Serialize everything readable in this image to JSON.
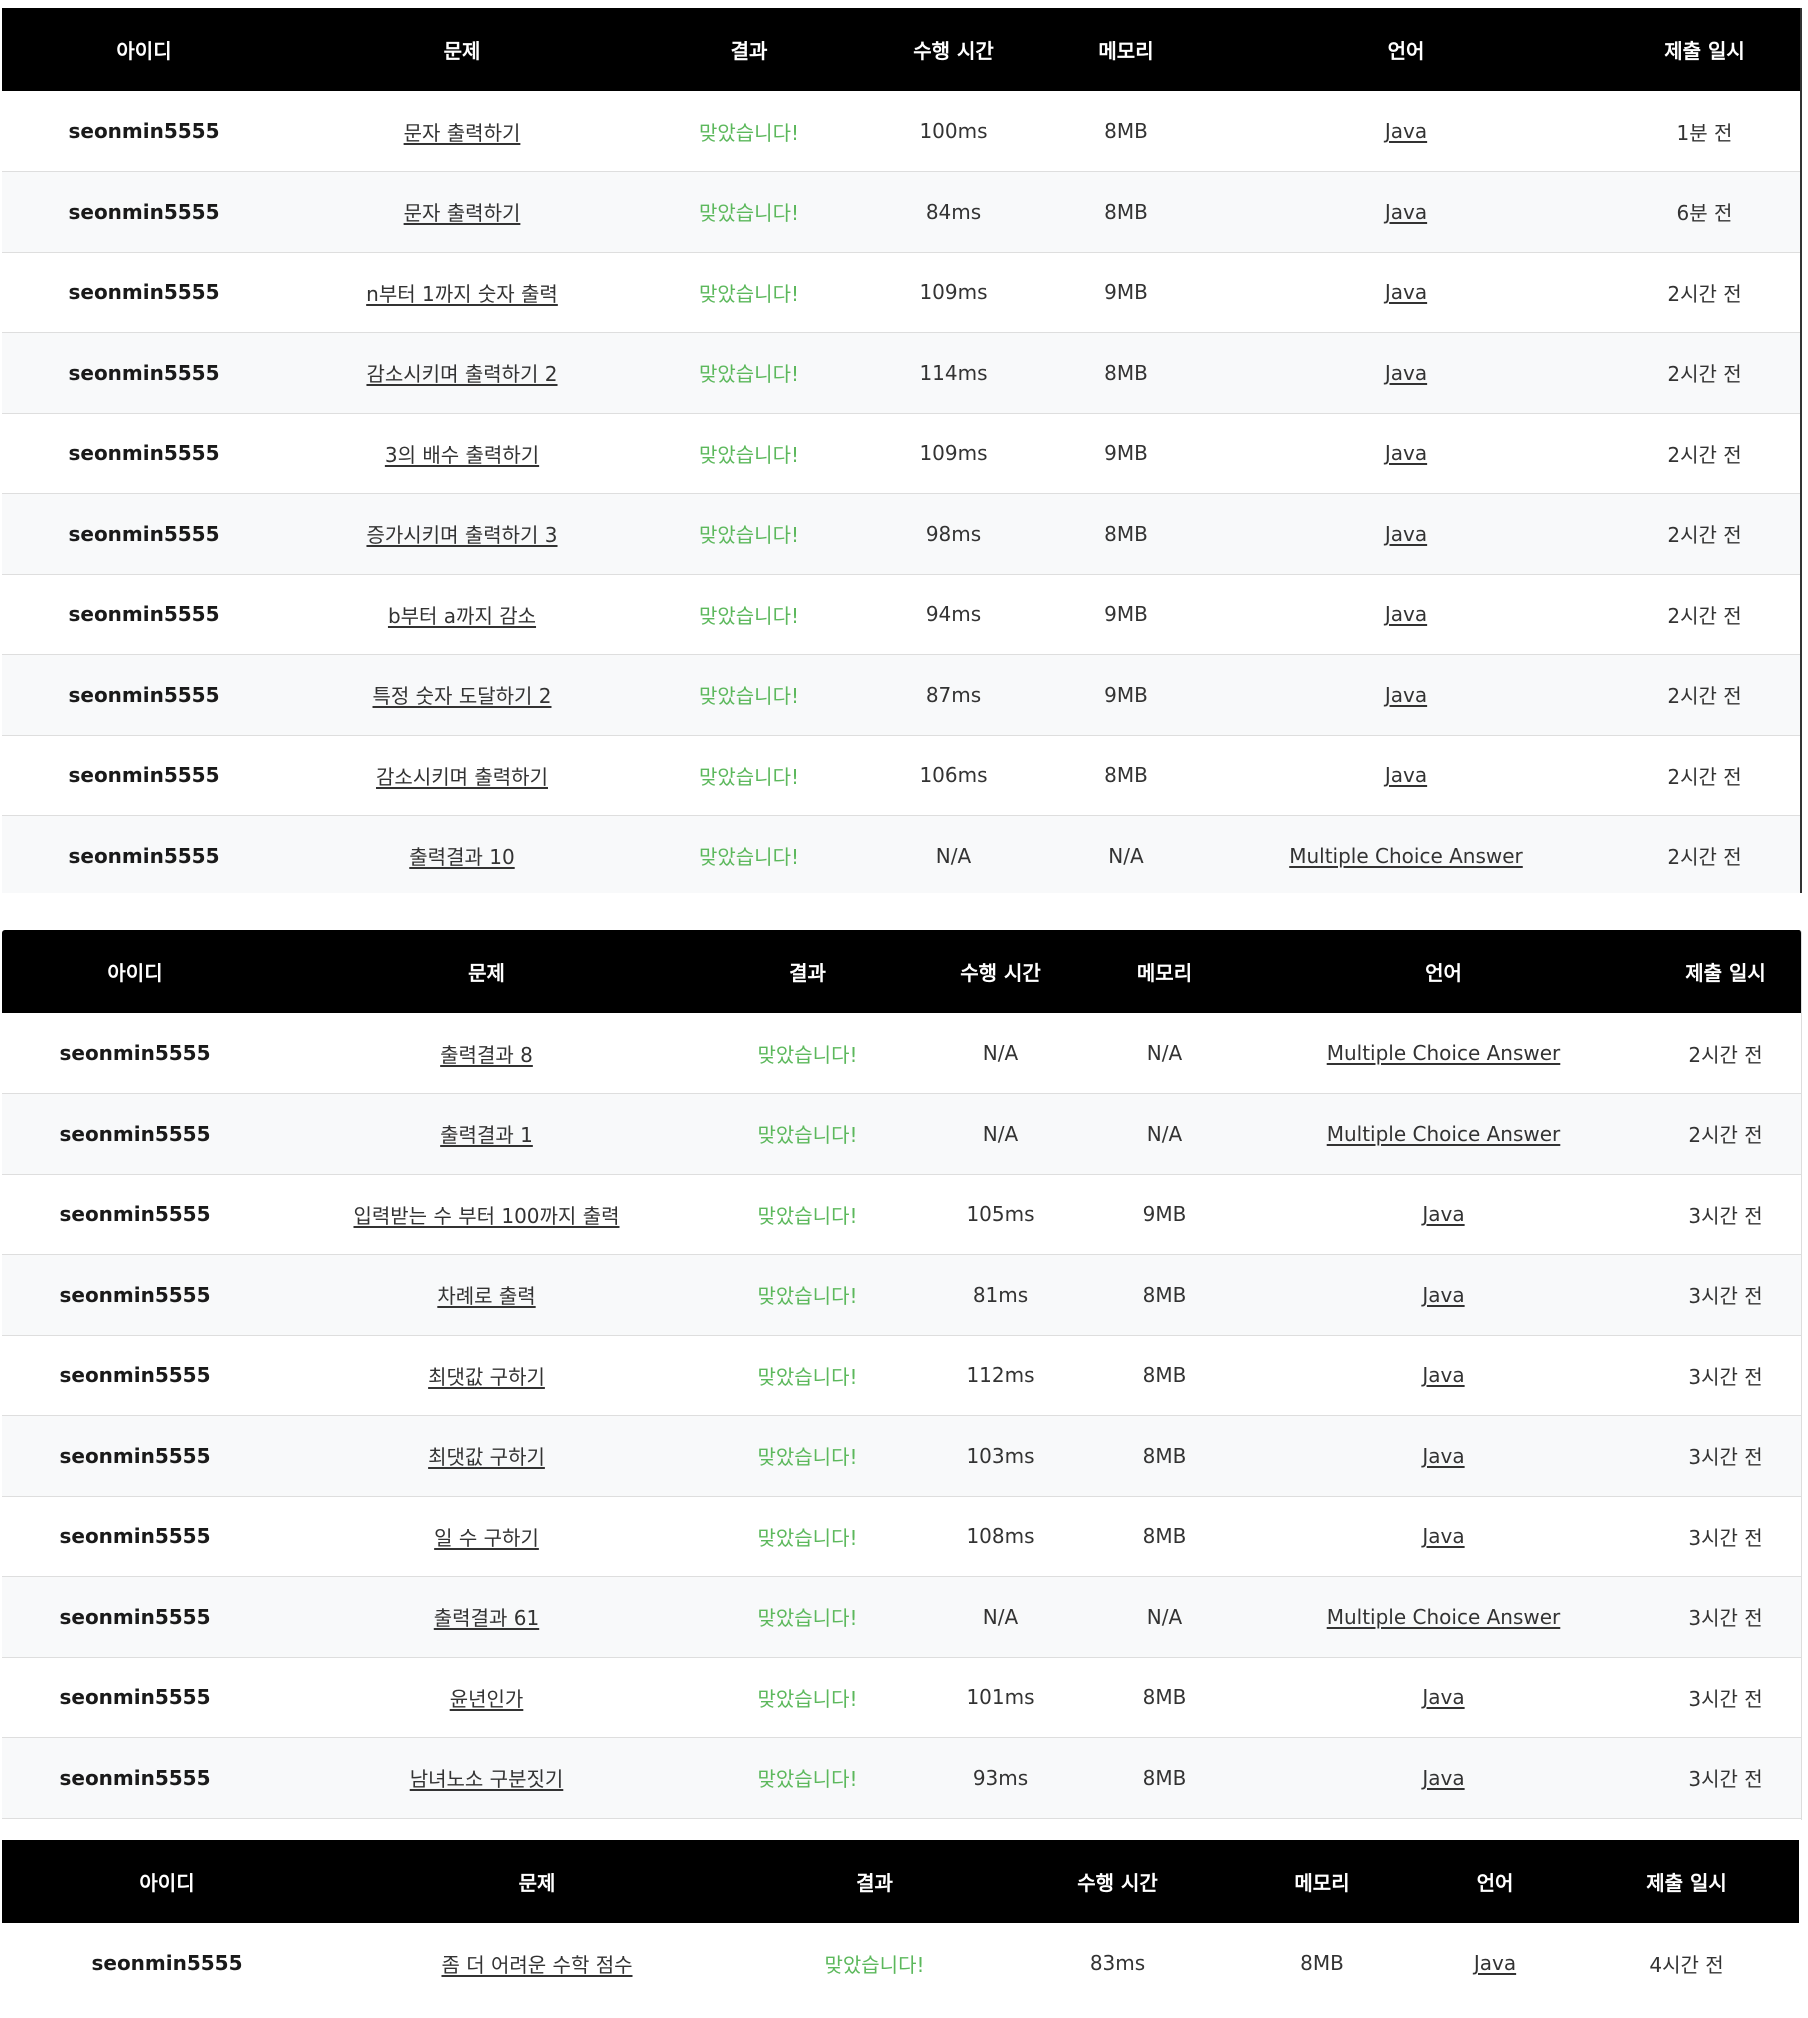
{
  "accent_color": "#5cb85c",
  "header_color": "#000000",
  "columns": [
    "아이디",
    "문제",
    "결과",
    "수행 시간",
    "메모리",
    "언어",
    "제출 일시"
  ],
  "tables": [
    {
      "rows": [
        {
          "user": "seonmin5555",
          "problem": "문자 출력하기",
          "result": "맞았습니다!",
          "time": "100ms",
          "memory": "8MB",
          "language": "Java",
          "submitted": "1분 전"
        },
        {
          "user": "seonmin5555",
          "problem": "문자 출력하기",
          "result": "맞았습니다!",
          "time": "84ms",
          "memory": "8MB",
          "language": "Java",
          "submitted": "6분 전"
        },
        {
          "user": "seonmin5555",
          "problem": "n부터 1까지 숫자 출력",
          "result": "맞았습니다!",
          "time": "109ms",
          "memory": "9MB",
          "language": "Java",
          "submitted": "2시간 전"
        },
        {
          "user": "seonmin5555",
          "problem": "감소시키며 출력하기 2",
          "result": "맞았습니다!",
          "time": "114ms",
          "memory": "8MB",
          "language": "Java",
          "submitted": "2시간 전"
        },
        {
          "user": "seonmin5555",
          "problem": "3의 배수 출력하기",
          "result": "맞았습니다!",
          "time": "109ms",
          "memory": "9MB",
          "language": "Java",
          "submitted": "2시간 전"
        },
        {
          "user": "seonmin5555",
          "problem": "증가시키며 출력하기 3",
          "result": "맞았습니다!",
          "time": "98ms",
          "memory": "8MB",
          "language": "Java",
          "submitted": "2시간 전"
        },
        {
          "user": "seonmin5555",
          "problem": "b부터 a까지 감소",
          "result": "맞았습니다!",
          "time": "94ms",
          "memory": "9MB",
          "language": "Java",
          "submitted": "2시간 전"
        },
        {
          "user": "seonmin5555",
          "problem": "특정 숫자 도달하기 2",
          "result": "맞았습니다!",
          "time": "87ms",
          "memory": "9MB",
          "language": "Java",
          "submitted": "2시간 전"
        },
        {
          "user": "seonmin5555",
          "problem": "감소시키며 출력하기",
          "result": "맞았습니다!",
          "time": "106ms",
          "memory": "8MB",
          "language": "Java",
          "submitted": "2시간 전"
        },
        {
          "user": "seonmin5555",
          "problem": "출력결과 10",
          "result": "맞았습니다!",
          "time": "N/A",
          "memory": "N/A",
          "language": "Multiple Choice Answer",
          "submitted": "2시간 전"
        }
      ]
    },
    {
      "rows": [
        {
          "user": "seonmin5555",
          "problem": "출력결과 8",
          "result": "맞았습니다!",
          "time": "N/A",
          "memory": "N/A",
          "language": "Multiple Choice Answer",
          "submitted": "2시간 전"
        },
        {
          "user": "seonmin5555",
          "problem": "출력결과 1",
          "result": "맞았습니다!",
          "time": "N/A",
          "memory": "N/A",
          "language": "Multiple Choice Answer",
          "submitted": "2시간 전"
        },
        {
          "user": "seonmin5555",
          "problem": "입력받는 수 부터 100까지 출력",
          "result": "맞았습니다!",
          "time": "105ms",
          "memory": "9MB",
          "language": "Java",
          "submitted": "3시간 전"
        },
        {
          "user": "seonmin5555",
          "problem": "차례로 출력",
          "result": "맞았습니다!",
          "time": "81ms",
          "memory": "8MB",
          "language": "Java",
          "submitted": "3시간 전"
        },
        {
          "user": "seonmin5555",
          "problem": "최댓값 구하기",
          "result": "맞았습니다!",
          "time": "112ms",
          "memory": "8MB",
          "language": "Java",
          "submitted": "3시간 전"
        },
        {
          "user": "seonmin5555",
          "problem": "최댓값 구하기",
          "result": "맞았습니다!",
          "time": "103ms",
          "memory": "8MB",
          "language": "Java",
          "submitted": "3시간 전"
        },
        {
          "user": "seonmin5555",
          "problem": "일 수 구하기",
          "result": "맞았습니다!",
          "time": "108ms",
          "memory": "8MB",
          "language": "Java",
          "submitted": "3시간 전"
        },
        {
          "user": "seonmin5555",
          "problem": "출력결과 61",
          "result": "맞았습니다!",
          "time": "N/A",
          "memory": "N/A",
          "language": "Multiple Choice Answer",
          "submitted": "3시간 전"
        },
        {
          "user": "seonmin5555",
          "problem": "윤년인가",
          "result": "맞았습니다!",
          "time": "101ms",
          "memory": "8MB",
          "language": "Java",
          "submitted": "3시간 전"
        },
        {
          "user": "seonmin5555",
          "problem": "남녀노소 구분짓기",
          "result": "맞았습니다!",
          "time": "93ms",
          "memory": "8MB",
          "language": "Java",
          "submitted": "3시간 전"
        }
      ]
    },
    {
      "rows": [
        {
          "user": "seonmin5555",
          "problem": "좀 더 어려운 수학 점수",
          "result": "맞았습니다!",
          "time": "83ms",
          "memory": "8MB",
          "language": "Java",
          "submitted": "4시간 전"
        }
      ]
    }
  ]
}
